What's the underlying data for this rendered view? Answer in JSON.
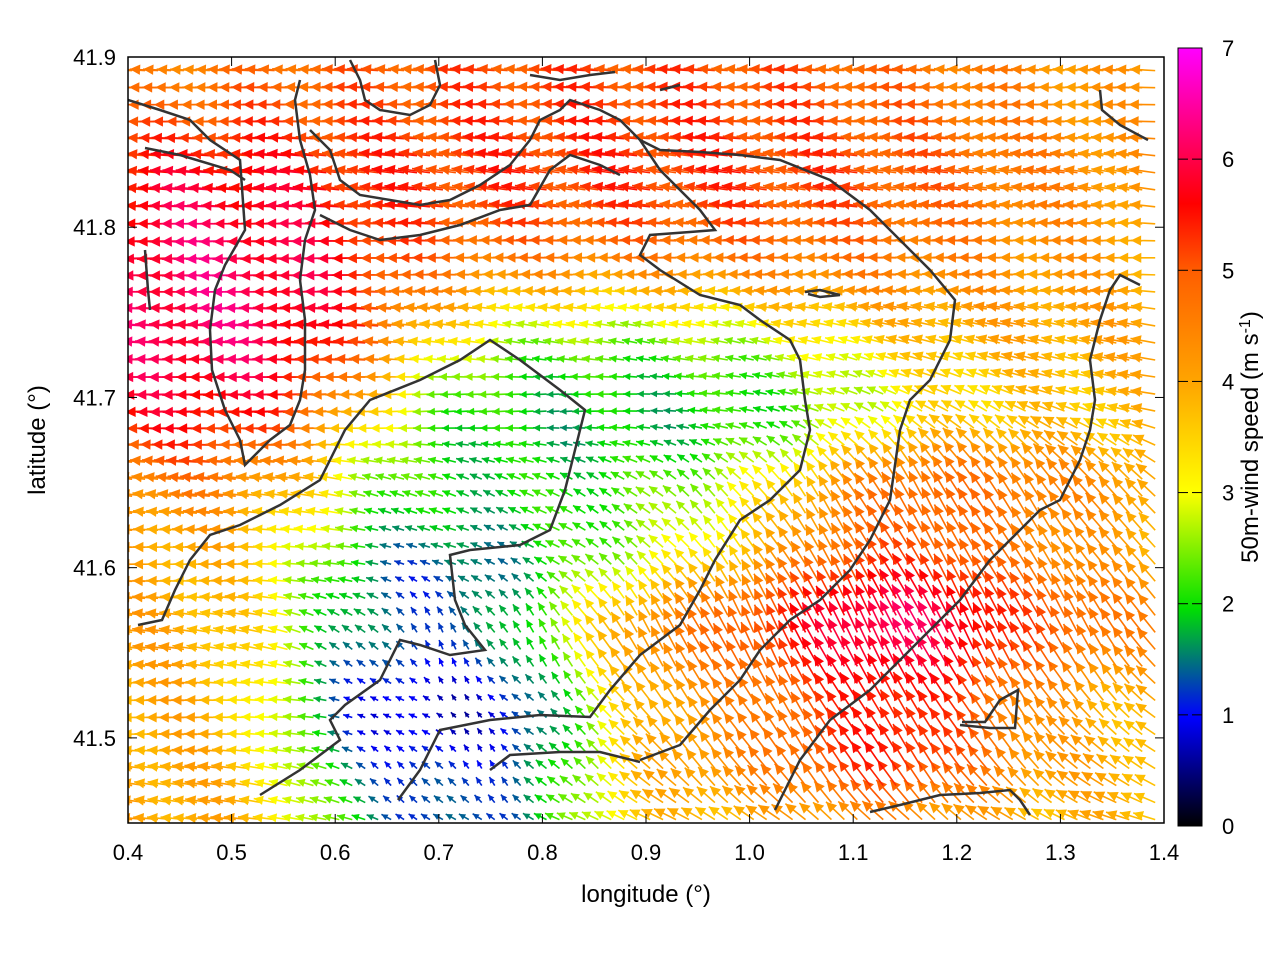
{
  "chart_data": {
    "type": "vector-field",
    "title": "",
    "xlabel": "longitude (°)",
    "ylabel": "latitude (°)",
    "xlim": [
      0.4,
      1.4
    ],
    "ylim": [
      41.45,
      41.9
    ],
    "x_ticks": [
      "0.4",
      "0.5",
      "0.6",
      "0.7",
      "0.8",
      "0.9",
      "1.0",
      "1.1",
      "1.2",
      "1.3",
      "1.4"
    ],
    "y_ticks": [
      "41.5",
      "41.6",
      "41.7",
      "41.8",
      "41.9"
    ],
    "colorbar": {
      "label_main": "50m-wind speed (m s",
      "label_sup": "-1",
      "label_end": ")",
      "range": [
        0,
        7
      ],
      "ticks": [
        "0",
        "1",
        "2",
        "3",
        "4",
        "5",
        "6",
        "7"
      ],
      "colors": [
        "#000000",
        "#0000ff",
        "#00ee00",
        "#ffff00",
        "#ffa500",
        "#ff0000",
        "#ff00ff"
      ]
    },
    "grid_step": [
      0.0125,
      0.01
    ],
    "wind_regions": [
      {
        "name": "north-west strong westward flow",
        "lon": [
          0.4,
          0.62
        ],
        "lat": [
          41.7,
          41.82
        ],
        "speed": 6.5,
        "direction_deg": 180
      },
      {
        "name": "north band westward flow",
        "lon": [
          0.6,
          1.15
        ],
        "lat": [
          41.78,
          41.9
        ],
        "speed": 5.5,
        "direction_deg": 175
      },
      {
        "name": "central weak zone",
        "lon": [
          0.7,
          1.05
        ],
        "lat": [
          41.6,
          41.74
        ],
        "speed": 1.5,
        "direction_deg": 180
      },
      {
        "name": "south-west calm basin",
        "lon": [
          0.64,
          0.8
        ],
        "lat": [
          41.45,
          41.6
        ],
        "speed": 0.6,
        "direction_deg": 90
      },
      {
        "name": "south-east northward jet",
        "lon": [
          0.85,
          1.35
        ],
        "lat": [
          41.5,
          41.65
        ],
        "speed": 5.5,
        "direction_deg": 110
      },
      {
        "name": "south-east magenta core",
        "lon": [
          1.08,
          1.2
        ],
        "lat": [
          41.5,
          41.6
        ],
        "speed": 6.8,
        "direction_deg": 120
      }
    ],
    "coastline_note": "contour lines overlaid"
  }
}
